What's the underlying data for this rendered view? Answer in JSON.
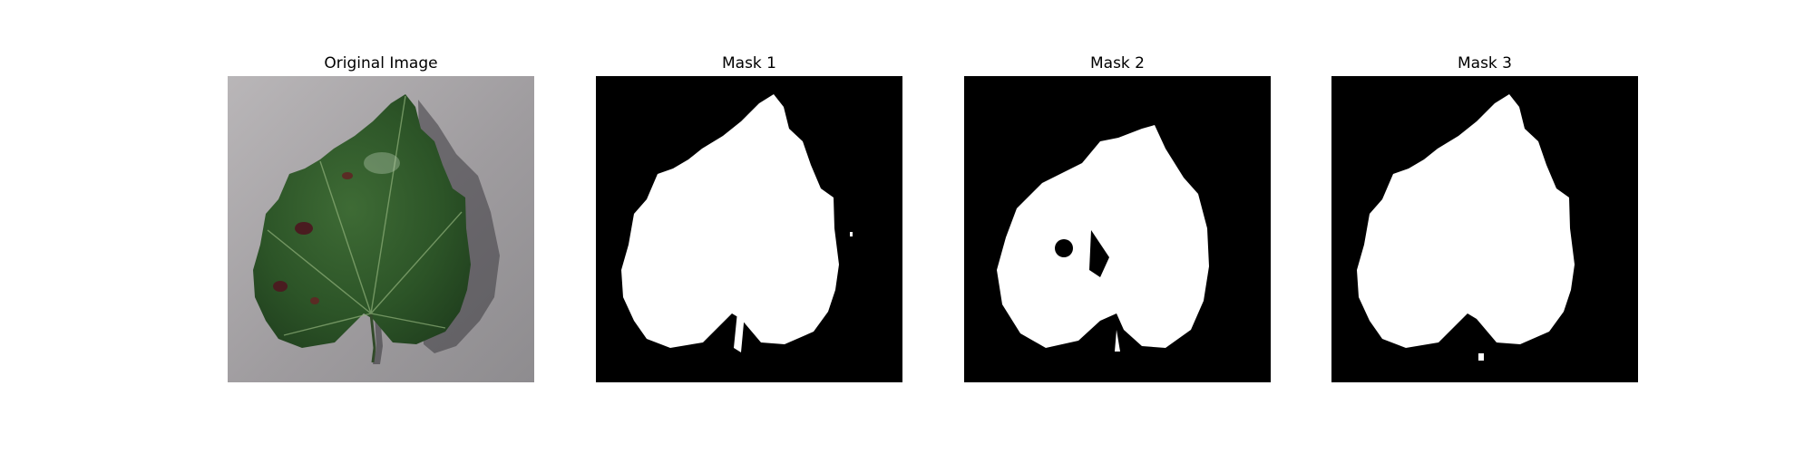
{
  "figure": {
    "panels": [
      {
        "title": "Original Image",
        "kind": "photo",
        "subject": "leaf-photo"
      },
      {
        "title": "Mask 1",
        "kind": "mask",
        "subject": "leaf-mask"
      },
      {
        "title": "Mask 2",
        "kind": "mask",
        "subject": "leaf-mask"
      },
      {
        "title": "Mask 3",
        "kind": "mask",
        "subject": "leaf-mask"
      }
    ],
    "colors": {
      "mask_foreground": "#ffffff",
      "mask_background": "#000000",
      "leaf_green": "#2f5a2a",
      "background_gray": "#9c9a9c"
    }
  }
}
